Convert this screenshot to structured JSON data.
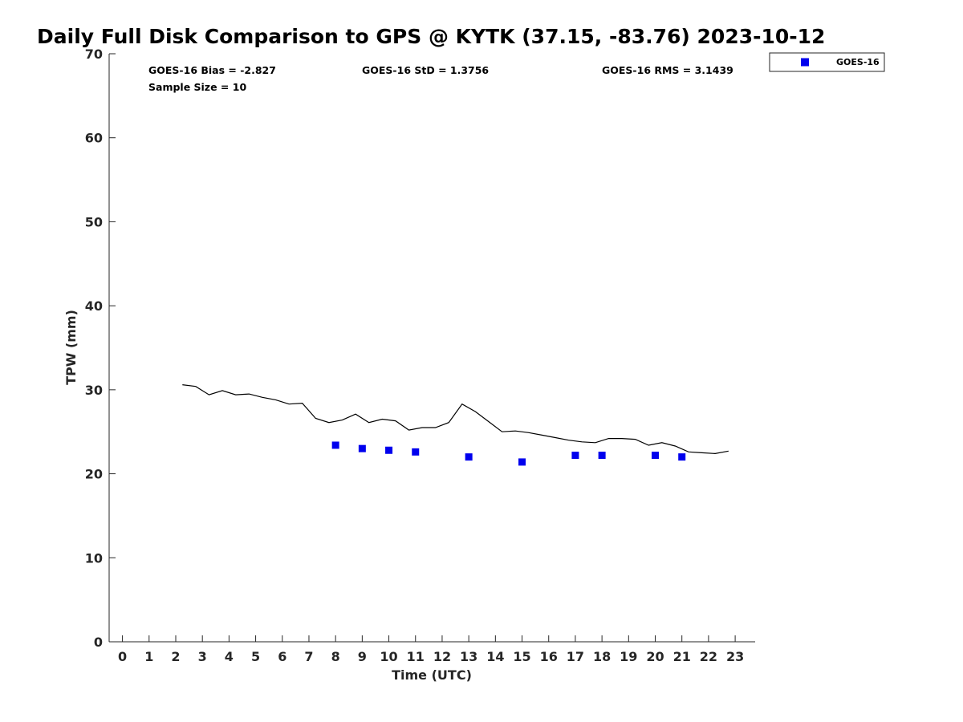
{
  "chart_data": {
    "type": "scatter",
    "title": "Daily Full Disk Comparison to GPS @ KYTK (37.15, -83.76) 2023-10-12",
    "xlabel": "Time (UTC)",
    "ylabel": "TPW (mm)",
    "xlim": [
      -0.5,
      23.75
    ],
    "ylim": [
      0,
      70
    ],
    "x_ticks": [
      0,
      1,
      2,
      3,
      4,
      5,
      6,
      7,
      8,
      9,
      10,
      11,
      12,
      13,
      14,
      15,
      16,
      17,
      18,
      19,
      20,
      21,
      22,
      23
    ],
    "x_tick_labels": [
      "0",
      "1",
      "2",
      "3",
      "4",
      "5",
      "6",
      "7",
      "8",
      "9",
      "10",
      "11",
      "12",
      "13",
      "14",
      "15",
      "16",
      "17",
      "18",
      "19",
      "20",
      "21",
      "22",
      "23"
    ],
    "y_ticks": [
      0,
      10,
      20,
      30,
      40,
      50,
      60,
      70
    ],
    "y_tick_labels": [
      "0",
      "10",
      "20",
      "30",
      "40",
      "50",
      "60",
      "70"
    ],
    "grid": false,
    "legend_position": "top-right outside",
    "stats": {
      "bias": "GOES-16 Bias = -2.827",
      "std": "GOES-16 StD = 1.3756",
      "rms": "GOES-16 RMS = 3.1439",
      "sample_size": "Sample Size = 10"
    },
    "gps_line": {
      "color": "#000000",
      "x": [
        2.25,
        2.75,
        3.25,
        3.75,
        4.25,
        4.75,
        5.25,
        5.75,
        6.25,
        6.75,
        7.25,
        7.75,
        8.25,
        8.75,
        9.25,
        9.75,
        10.25,
        10.75,
        11.25,
        11.75,
        12.25,
        12.75,
        13.25,
        13.75,
        14.25,
        14.75,
        15.25,
        15.75,
        16.25,
        16.75,
        17.25,
        17.75,
        18.25,
        18.75,
        19.25,
        19.75,
        20.25,
        20.75,
        21.25,
        21.75,
        22.25,
        22.75
      ],
      "y": [
        30.6,
        30.4,
        29.4,
        29.9,
        29.4,
        29.5,
        29.1,
        28.8,
        28.3,
        28.4,
        26.6,
        26.1,
        26.4,
        27.1,
        26.1,
        26.5,
        26.3,
        25.2,
        25.5,
        25.5,
        26.1,
        28.3,
        27.4,
        26.2,
        25.0,
        25.1,
        24.9,
        24.6,
        24.3,
        24.0,
        23.8,
        23.7,
        24.2,
        24.2,
        24.1,
        23.4,
        23.7,
        23.3,
        22.6,
        22.5,
        22.4,
        22.7
      ]
    },
    "series": [
      {
        "name": "GOES-16",
        "color": "#0000ee",
        "marker": "square",
        "x": [
          8,
          9,
          10,
          11,
          13,
          15,
          17,
          18,
          20,
          21
        ],
        "y": [
          23.4,
          23.0,
          22.8,
          22.6,
          22.0,
          21.4,
          22.2,
          22.2,
          22.2,
          22.0
        ]
      }
    ]
  }
}
